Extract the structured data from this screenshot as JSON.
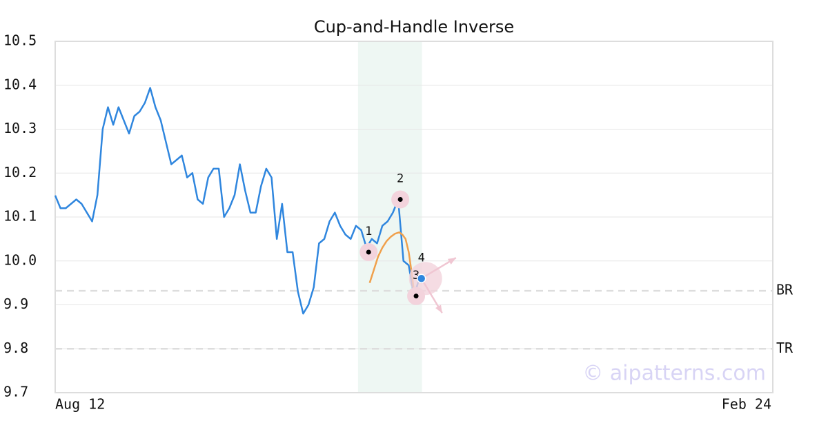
{
  "chart_data": {
    "type": "line",
    "title": "Cup-and-Handle Inverse",
    "x": [
      0,
      1,
      2,
      3,
      4,
      5,
      6,
      7,
      8,
      9,
      10,
      11,
      12,
      13,
      14,
      15,
      16,
      17,
      18,
      19,
      20,
      21,
      22,
      23,
      24,
      25,
      26,
      27,
      28,
      29,
      30,
      31,
      32,
      33,
      34,
      35,
      36,
      37,
      38,
      39,
      40,
      41,
      42,
      43,
      44,
      45,
      46,
      47,
      48,
      49,
      50,
      51,
      52,
      53,
      54,
      55,
      56,
      57,
      58,
      59,
      60,
      61,
      62,
      63,
      64,
      65,
      66,
      67,
      68,
      69
    ],
    "series": [
      {
        "color": "#2f86de",
        "values": [
          10.149,
          10.12,
          10.12,
          10.13,
          10.14,
          10.13,
          10.11,
          10.09,
          10.15,
          10.3,
          10.35,
          10.31,
          10.35,
          10.32,
          10.29,
          10.33,
          10.34,
          10.36,
          10.394,
          10.35,
          10.32,
          10.27,
          10.22,
          10.23,
          10.24,
          10.19,
          10.2,
          10.14,
          10.13,
          10.19,
          10.21,
          10.21,
          10.1,
          10.12,
          10.15,
          10.22,
          10.16,
          10.11,
          10.11,
          10.17,
          10.21,
          10.19,
          10.05,
          10.13,
          10.02,
          10.02,
          9.93,
          9.88,
          9.9,
          9.94,
          10.04,
          10.05,
          10.09,
          10.11,
          10.08,
          10.06,
          10.05,
          10.08,
          10.07,
          10.03,
          10.05,
          10.04,
          10.08,
          10.09,
          10.11,
          10.14,
          10.0,
          9.99,
          9.92,
          9.96
        ]
      }
    ],
    "fit": {
      "color": "#f0a04b",
      "x": [
        59.6,
        60.4,
        61.2,
        62,
        62.8,
        63.6,
        64.4,
        65.2,
        65.8,
        66.4,
        67,
        67.6,
        68.1
      ],
      "values": [
        9.95,
        9.98,
        10.01,
        10.03,
        10.045,
        10.055,
        10.062,
        10.065,
        10.06,
        10.05,
        10.02,
        9.97,
        9.92
      ]
    },
    "points": {
      "x": [
        59.4,
        65.4,
        68.4,
        69.4
      ],
      "values": [
        10.02,
        10.14,
        9.92,
        9.96
      ],
      "labels": [
        "1",
        "2",
        "3",
        "4"
      ]
    },
    "levels": [
      {
        "label": "BR",
        "value": 9.932
      },
      {
        "label": "TR",
        "value": 9.8
      }
    ],
    "highlight": [
      57.4,
      69.5
    ],
    "xlim": [
      0,
      136
    ],
    "xticks": [
      {
        "value": 0,
        "label": "Aug 12"
      },
      {
        "value": 136,
        "label": "Feb 24"
      }
    ],
    "ylim": [
      9.7,
      10.5
    ],
    "yticks": [
      9.7,
      9.8,
      9.9,
      {
        "value": 10,
        "label": "10.0"
      },
      10.1,
      10.2,
      10.3,
      10.4,
      10.5
    ],
    "grid": true,
    "watermark": "© aipatterns.com"
  }
}
